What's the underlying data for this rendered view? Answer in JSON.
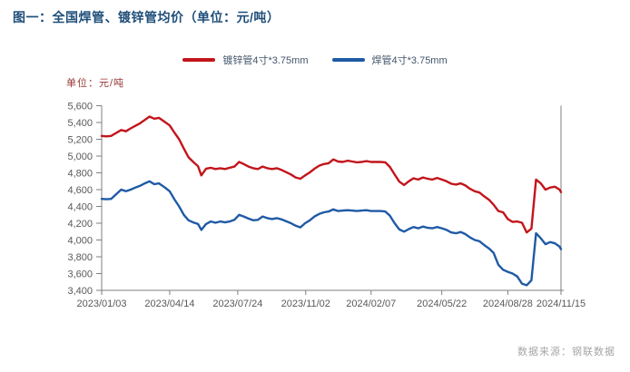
{
  "title": "图一：全国焊管、镀锌管均价（单位：元/吨）",
  "unit_label": "单位：元/吨",
  "source": "数据来源：钢联数据",
  "colors": {
    "title": "#1f4e79",
    "unit_label": "#953735",
    "galvanized_line": "#c2151b",
    "welded_line": "#1f5aa5",
    "axis": "#7f7f7f",
    "tick_text": "#595959",
    "legend_text": "#44546a",
    "source_text": "#a6a6a6"
  },
  "chart_data": {
    "type": "line",
    "title": "图一：全国焊管、镀锌管均价（单位：元/吨）",
    "ylabel": "单位：元/吨",
    "ylim": [
      3400,
      5600
    ],
    "ytick_step": 200,
    "grid": false,
    "legend_position": "top-center",
    "xticks": [
      "2023/01/03",
      "2023/04/14",
      "2023/07/24",
      "2023/11/02",
      "2024/02/07",
      "2024/05/22",
      "2024/08/28",
      "2024/11/15"
    ],
    "x": [
      "2023/01/03",
      "2023/01/10",
      "2023/01/17",
      "2023/02/01",
      "2023/02/08",
      "2023/02/15",
      "2023/02/22",
      "2023/03/01",
      "2023/03/08",
      "2023/03/15",
      "2023/03/22",
      "2023/03/29",
      "2023/04/07",
      "2023/04/14",
      "2023/04/21",
      "2023/04/28",
      "2023/05/05",
      "2023/05/12",
      "2023/05/19",
      "2023/05/26",
      "2023/05/31",
      "2023/06/07",
      "2023/06/14",
      "2023/06/21",
      "2023/06/28",
      "2023/07/05",
      "2023/07/12",
      "2023/07/19",
      "2023/07/26",
      "2023/08/02",
      "2023/08/09",
      "2023/08/16",
      "2023/08/23",
      "2023/08/30",
      "2023/09/06",
      "2023/09/13",
      "2023/09/20",
      "2023/09/27",
      "2023/10/11",
      "2023/10/18",
      "2023/10/25",
      "2023/11/01",
      "2023/11/08",
      "2023/11/15",
      "2023/11/22",
      "2023/11/29",
      "2023/12/06",
      "2023/12/13",
      "2023/12/20",
      "2023/12/27",
      "2024/01/03",
      "2024/01/10",
      "2024/01/17",
      "2024/01/24",
      "2024/01/31",
      "2024/02/07",
      "2024/02/21",
      "2024/02/28",
      "2024/03/06",
      "2024/03/13",
      "2024/03/20",
      "2024/03/27",
      "2024/04/03",
      "2024/04/10",
      "2024/04/17",
      "2024/04/24",
      "2024/05/01",
      "2024/05/08",
      "2024/05/15",
      "2024/05/22",
      "2024/05/29",
      "2024/06/05",
      "2024/06/12",
      "2024/06/19",
      "2024/06/26",
      "2024/07/03",
      "2024/07/10",
      "2024/07/17",
      "2024/07/24",
      "2024/07/31",
      "2024/08/07",
      "2024/08/14",
      "2024/08/21",
      "2024/08/28",
      "2024/09/04",
      "2024/09/11",
      "2024/09/18",
      "2024/09/25",
      "2024/10/02",
      "2024/10/09",
      "2024/10/16",
      "2024/10/23",
      "2024/10/30",
      "2024/11/06",
      "2024/11/13",
      "2024/11/15"
    ],
    "series": [
      {
        "name": "镀锌管4寸*3.75mm",
        "color": "#c2151b",
        "values": [
          5240,
          5235,
          5240,
          5310,
          5295,
          5330,
          5360,
          5390,
          5430,
          5470,
          5445,
          5455,
          5405,
          5365,
          5280,
          5200,
          5090,
          4985,
          4930,
          4880,
          4770,
          4850,
          4860,
          4845,
          4855,
          4845,
          4860,
          4875,
          4930,
          4905,
          4875,
          4855,
          4845,
          4875,
          4855,
          4845,
          4855,
          4835,
          4780,
          4745,
          4730,
          4770,
          4805,
          4850,
          4885,
          4905,
          4915,
          4960,
          4935,
          4930,
          4945,
          4935,
          4925,
          4930,
          4940,
          4930,
          4930,
          4925,
          4870,
          4780,
          4695,
          4655,
          4700,
          4735,
          4720,
          4745,
          4730,
          4720,
          4740,
          4720,
          4700,
          4670,
          4660,
          4675,
          4650,
          4610,
          4580,
          4565,
          4520,
          4480,
          4420,
          4345,
          4330,
          4250,
          4215,
          4220,
          4205,
          4090,
          4135,
          4720,
          4675,
          4600,
          4625,
          4635,
          4600,
          4570
        ]
      },
      {
        "name": "焊管4寸*3.75mm",
        "color": "#1f5aa5",
        "values": [
          4490,
          4485,
          4490,
          4600,
          4580,
          4600,
          4625,
          4645,
          4675,
          4700,
          4665,
          4675,
          4625,
          4580,
          4485,
          4400,
          4300,
          4235,
          4210,
          4190,
          4120,
          4190,
          4220,
          4205,
          4220,
          4210,
          4220,
          4240,
          4300,
          4280,
          4255,
          4235,
          4240,
          4280,
          4260,
          4250,
          4260,
          4245,
          4200,
          4170,
          4150,
          4200,
          4235,
          4280,
          4310,
          4330,
          4340,
          4365,
          4345,
          4350,
          4355,
          4350,
          4345,
          4350,
          4355,
          4345,
          4345,
          4340,
          4290,
          4200,
          4125,
          4100,
          4130,
          4155,
          4140,
          4160,
          4145,
          4140,
          4155,
          4140,
          4120,
          4090,
          4080,
          4095,
          4070,
          4030,
          4000,
          3985,
          3940,
          3900,
          3845,
          3705,
          3645,
          3620,
          3600,
          3565,
          3480,
          3460,
          3520,
          4080,
          4020,
          3950,
          3975,
          3960,
          3920,
          3890
        ]
      }
    ]
  }
}
